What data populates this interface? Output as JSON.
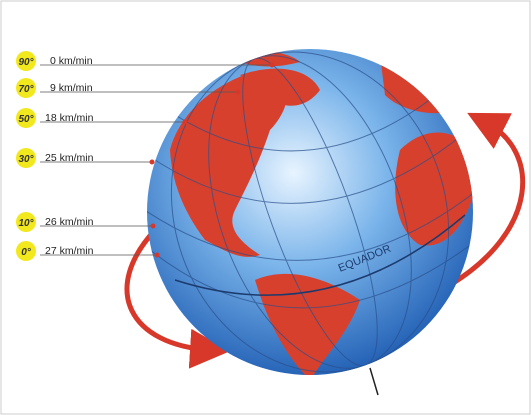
{
  "labels": [
    {
      "latitude": "90°",
      "speed": "0 km/min"
    },
    {
      "latitude": "70°",
      "speed": "9 km/min"
    },
    {
      "latitude": "50°",
      "speed": "18 km/min"
    },
    {
      "latitude": "30°",
      "speed": "25 km/min"
    },
    {
      "latitude": "10°",
      "speed": "26 km/min"
    },
    {
      "latitude": "0°",
      "speed": "27 km/min"
    }
  ],
  "equator_label": "EQUADOR"
}
